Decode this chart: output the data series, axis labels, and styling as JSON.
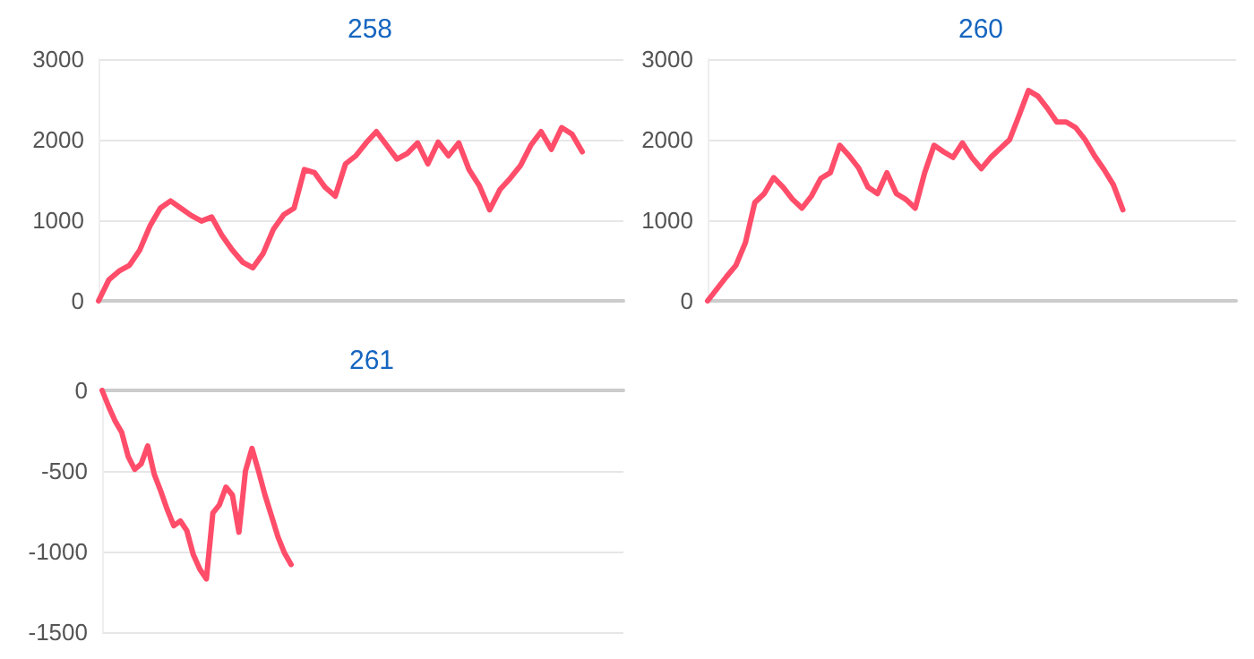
{
  "chart_data": [
    {
      "type": "line",
      "title": "258",
      "categories": [
        null,
        null,
        null,
        null,
        null,
        null,
        null,
        null,
        null,
        null,
        null,
        null,
        null,
        null,
        null,
        null,
        null,
        null,
        null,
        null,
        null,
        null,
        null,
        null,
        null,
        null,
        null,
        null,
        null,
        null,
        null,
        null,
        null,
        null,
        null,
        null,
        null,
        null,
        null,
        null,
        null,
        null,
        null,
        null,
        null,
        null,
        null,
        null,
        null,
        null,
        null,
        null
      ],
      "series": [
        {
          "color": "#ff4d6a",
          "values": [
            0,
            260,
            370,
            440,
            630,
            930,
            1150,
            1240,
            1150,
            1060,
            990,
            1040,
            810,
            630,
            480,
            410,
            590,
            890,
            1070,
            1150,
            1630,
            1590,
            1410,
            1300,
            1700,
            1800,
            1960,
            2100,
            1930,
            1760,
            1830,
            1960,
            1700,
            1970,
            1800,
            1960,
            1630,
            1430,
            1130,
            1380,
            1520,
            1680,
            1930,
            2100,
            1880,
            2150,
            2070,
            1850,
            null,
            null,
            null,
            null
          ]
        }
      ],
      "ylim": [
        0,
        3000
      ],
      "yticks": [
        0,
        1000,
        2000,
        3000
      ],
      "grid": "y",
      "tick_labels": "y"
    },
    {
      "type": "line",
      "title": "260",
      "categories": [
        null,
        null,
        null,
        null,
        null,
        null,
        null,
        null,
        null,
        null,
        null,
        null,
        null,
        null,
        null,
        null,
        null,
        null,
        null,
        null,
        null,
        null,
        null,
        null,
        null,
        null,
        null,
        null,
        null,
        null,
        null,
        null,
        null,
        null,
        null,
        null,
        null,
        null,
        null,
        null,
        null,
        null,
        null,
        null,
        null,
        null,
        null,
        null,
        null,
        null,
        null,
        null,
        null,
        null,
        null,
        null,
        null
      ],
      "series": [
        {
          "color": "#ff4d6a",
          "values": [
            0,
            150,
            300,
            440,
            720,
            1220,
            1330,
            1530,
            1410,
            1260,
            1150,
            1300,
            1520,
            1590,
            1930,
            1800,
            1650,
            1410,
            1330,
            1590,
            1330,
            1260,
            1150,
            1590,
            1930,
            1850,
            1780,
            1960,
            1780,
            1640,
            1780,
            1890,
            2000,
            2300,
            2610,
            2540,
            2390,
            2220,
            2220,
            2150,
            2000,
            1800,
            1630,
            1440,
            1130,
            null,
            null,
            null,
            null,
            null,
            null,
            null,
            null,
            null,
            null,
            null,
            null
          ]
        }
      ],
      "ylim": [
        0,
        3000
      ],
      "yticks": [
        0,
        1000,
        2000,
        3000
      ],
      "grid": "y",
      "tick_labels": "y"
    },
    {
      "type": "line",
      "title": "261",
      "categories": [
        null,
        null,
        null,
        null,
        null,
        null,
        null,
        null,
        null,
        null,
        null,
        null,
        null,
        null,
        null,
        null,
        null,
        null,
        null,
        null,
        null,
        null,
        null,
        null,
        null,
        null,
        null,
        null,
        null,
        null,
        null,
        null,
        null,
        null,
        null,
        null,
        null,
        null,
        null,
        null,
        null,
        null,
        null,
        null,
        null,
        null,
        null,
        null,
        null,
        null,
        null,
        null,
        null,
        null,
        null,
        null,
        null,
        null,
        null,
        null,
        null,
        null,
        null,
        null,
        null,
        null,
        null,
        null,
        null,
        null,
        null,
        null,
        null,
        null,
        null,
        null,
        null,
        null,
        null,
        null,
        null
      ],
      "series": [
        {
          "color": "#ff4d6a",
          "values": [
            0,
            -100,
            -190,
            -260,
            -410,
            -490,
            -455,
            -345,
            -520,
            -625,
            -740,
            -840,
            -810,
            -870,
            -1020,
            -1110,
            -1170,
            -760,
            -710,
            -600,
            -650,
            -880,
            -500,
            -360,
            -500,
            -650,
            -780,
            -910,
            -1010,
            -1080,
            null,
            null,
            null,
            null,
            null,
            null,
            null,
            null,
            null,
            null,
            null,
            null,
            null,
            null,
            null,
            null,
            null,
            null,
            null,
            null,
            null,
            null,
            null,
            null,
            null,
            null,
            null,
            null,
            null,
            null,
            null,
            null,
            null,
            null,
            null,
            null,
            null,
            null,
            null,
            null,
            null,
            null,
            null,
            null,
            null,
            null,
            null,
            null,
            null,
            null,
            null
          ]
        }
      ],
      "ylim": [
        -1500,
        0
      ],
      "yticks": [
        -1500,
        -1000,
        -500,
        0
      ],
      "grid": "y",
      "tick_labels": "y"
    }
  ]
}
